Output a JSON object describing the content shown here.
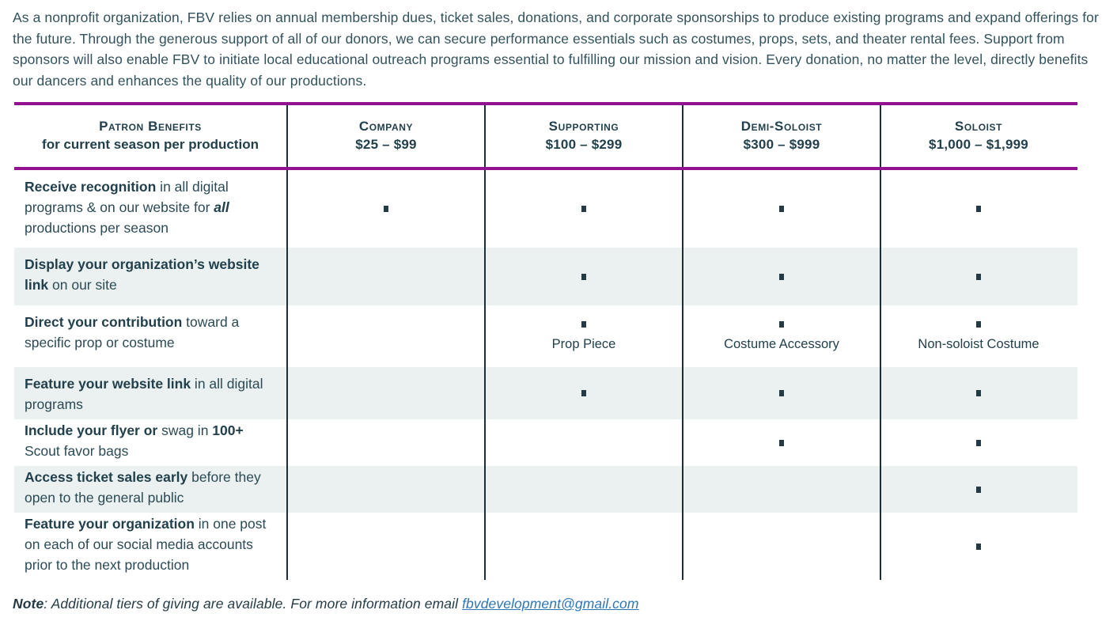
{
  "intro": {
    "text": "As a nonprofit organization, FBV relies on annual membership dues, ticket sales, donations, and corporate sponsorships to produce existing programs and expand offerings for the future. Through the generous support of all of our donors, we can secure performance essentials such as costumes, props, sets, and theater rental fees. Support from sponsors will also enable FBV to initiate local educational outreach programs essential to fulfilling our mission and vision. Every donation, no matter the level, directly benefits our dancers and enhances the quality of our productions."
  },
  "table": {
    "header": {
      "benefits_title": "Patron Benefits",
      "benefits_subtitle": "for current season per production",
      "tiers": [
        {
          "name": "Company",
          "range": "$25 – $99"
        },
        {
          "name": "Supporting",
          "range": "$100 – $299"
        },
        {
          "name": "Demi-Soloist",
          "range": "$300 – $999"
        },
        {
          "name": "Soloist",
          "range": "$1,000 – $1,999"
        }
      ]
    },
    "marker_icon": "square-bullet",
    "rows": [
      {
        "shaded": false,
        "segments": [
          {
            "t": "Receive recognition",
            "b": true
          },
          {
            "t": " in all digital programs & on our website for "
          },
          {
            "t": "all",
            "b": true,
            "i": true
          },
          {
            "t": " productions per season"
          }
        ],
        "cells": [
          {
            "marker": true,
            "sublabel": ""
          },
          {
            "marker": true,
            "sublabel": ""
          },
          {
            "marker": true,
            "sublabel": ""
          },
          {
            "marker": true,
            "sublabel": ""
          }
        ]
      },
      {
        "shaded": true,
        "segments": [
          {
            "t": "Display your organization’s website link",
            "b": true
          },
          {
            "t": " on our site"
          }
        ],
        "cells": [
          {
            "marker": false,
            "sublabel": ""
          },
          {
            "marker": true,
            "sublabel": ""
          },
          {
            "marker": true,
            "sublabel": ""
          },
          {
            "marker": true,
            "sublabel": ""
          }
        ]
      },
      {
        "shaded": false,
        "segments": [
          {
            "t": "Direct your contribution",
            "b": true
          },
          {
            "t": " toward a specific prop or costume"
          }
        ],
        "cells": [
          {
            "marker": false,
            "sublabel": ""
          },
          {
            "marker": true,
            "sublabel": "Prop Piece"
          },
          {
            "marker": true,
            "sublabel": "Costume Accessory"
          },
          {
            "marker": true,
            "sublabel": "Non-soloist Costume"
          }
        ]
      },
      {
        "shaded": true,
        "segments": [
          {
            "t": "Feature your website link",
            "b": true
          },
          {
            "t": " in all digital programs"
          }
        ],
        "cells": [
          {
            "marker": false,
            "sublabel": ""
          },
          {
            "marker": true,
            "sublabel": ""
          },
          {
            "marker": true,
            "sublabel": ""
          },
          {
            "marker": true,
            "sublabel": ""
          }
        ]
      },
      {
        "shaded": false,
        "segments": [
          {
            "t": "Include your flyer or",
            "b": true
          },
          {
            "t": " swag in "
          },
          {
            "t": "100+",
            "b": true
          },
          {
            "t": " Scout favor bags"
          }
        ],
        "cells": [
          {
            "marker": false,
            "sublabel": ""
          },
          {
            "marker": false,
            "sublabel": ""
          },
          {
            "marker": true,
            "sublabel": ""
          },
          {
            "marker": true,
            "sublabel": ""
          }
        ]
      },
      {
        "shaded": true,
        "segments": [
          {
            "t": "Access ticket sales early",
            "b": true
          },
          {
            "t": " before they open to the general public"
          }
        ],
        "cells": [
          {
            "marker": false,
            "sublabel": ""
          },
          {
            "marker": false,
            "sublabel": ""
          },
          {
            "marker": false,
            "sublabel": ""
          },
          {
            "marker": true,
            "sublabel": ""
          }
        ]
      },
      {
        "shaded": false,
        "segments": [
          {
            "t": "Feature your organization",
            "b": true
          },
          {
            "t": " in one post on each of our social media accounts prior to the next production"
          }
        ],
        "cells": [
          {
            "marker": false,
            "sublabel": ""
          },
          {
            "marker": false,
            "sublabel": ""
          },
          {
            "marker": false,
            "sublabel": ""
          },
          {
            "marker": true,
            "sublabel": ""
          }
        ]
      }
    ]
  },
  "footer": {
    "note_label": "Note",
    "note_text": ": Additional tiers of giving are available. For more information email ",
    "email": "fbvdevelopment@gmail.com"
  },
  "colors": {
    "accent_purple": "#92128f",
    "row_shade": "#eaf1f0",
    "text_dark": "#22404c",
    "link_blue": "#2e75b6"
  }
}
